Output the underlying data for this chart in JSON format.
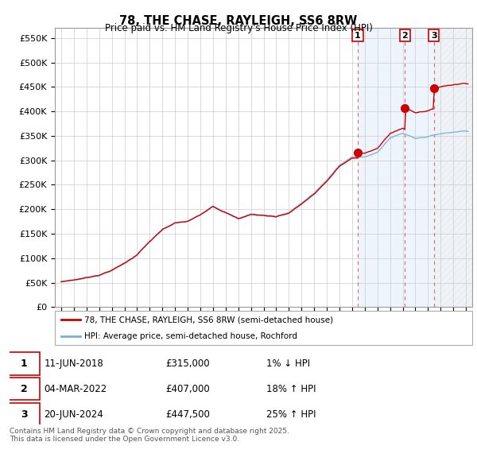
{
  "title": "78, THE CHASE, RAYLEIGH, SS6 8RW",
  "subtitle": "Price paid vs. HM Land Registry's House Price Index (HPI)",
  "ylim": [
    0,
    570000
  ],
  "yticks": [
    0,
    50000,
    100000,
    150000,
    200000,
    250000,
    300000,
    350000,
    400000,
    450000,
    500000,
    550000
  ],
  "xlim": [
    1994.5,
    2027.5
  ],
  "grid_color": "#cccccc",
  "hpi_fill_color": "#dbe8f8",
  "shade_color": "#dbe8f8",
  "transaction_markers": [
    {
      "year": 2018.44,
      "price": 315000,
      "label": "1"
    },
    {
      "year": 2022.17,
      "price": 407000,
      "label": "2"
    },
    {
      "year": 2024.47,
      "price": 447500,
      "label": "3"
    }
  ],
  "transaction_dates": [
    "11-JUN-2018",
    "04-MAR-2022",
    "20-JUN-2024"
  ],
  "transaction_prices": [
    "£315,000",
    "£407,000",
    "£447,500"
  ],
  "transaction_hpi": [
    "1% ↓ HPI",
    "18% ↑ HPI",
    "25% ↑ HPI"
  ],
  "legend_line1": "78, THE CHASE, RAYLEIGH, SS6 8RW (semi-detached house)",
  "legend_line2": "HPI: Average price, semi-detached house, Rochford",
  "footer": "Contains HM Land Registry data © Crown copyright and database right 2025.\nThis data is licensed under the Open Government Licence v3.0.",
  "red_line_color": "#cc0000",
  "blue_line_color": "#7bafd4",
  "hpi_base": {
    "1995": 52000,
    "1996": 55500,
    "1997": 60000,
    "1998": 66000,
    "1999": 76000,
    "2000": 90000,
    "2001": 108000,
    "2002": 135000,
    "2003": 158000,
    "2004": 172000,
    "2005": 175000,
    "2006": 188000,
    "2007": 208000,
    "2008": 196000,
    "2009": 183000,
    "2010": 192000,
    "2011": 190000,
    "2012": 188000,
    "2013": 196000,
    "2014": 215000,
    "2015": 235000,
    "2016": 262000,
    "2017": 292000,
    "2018": 308000,
    "2019": 310000,
    "2020": 318000,
    "2021": 348000,
    "2022": 358000,
    "2023": 348000,
    "2024": 352000,
    "2025": 358000,
    "2026": 362000,
    "2027": 365000
  },
  "red_offsets": {
    "pre2018": 0,
    "post2018_base": 315000,
    "post2022_base": 407000,
    "post2024_base": 447500
  }
}
